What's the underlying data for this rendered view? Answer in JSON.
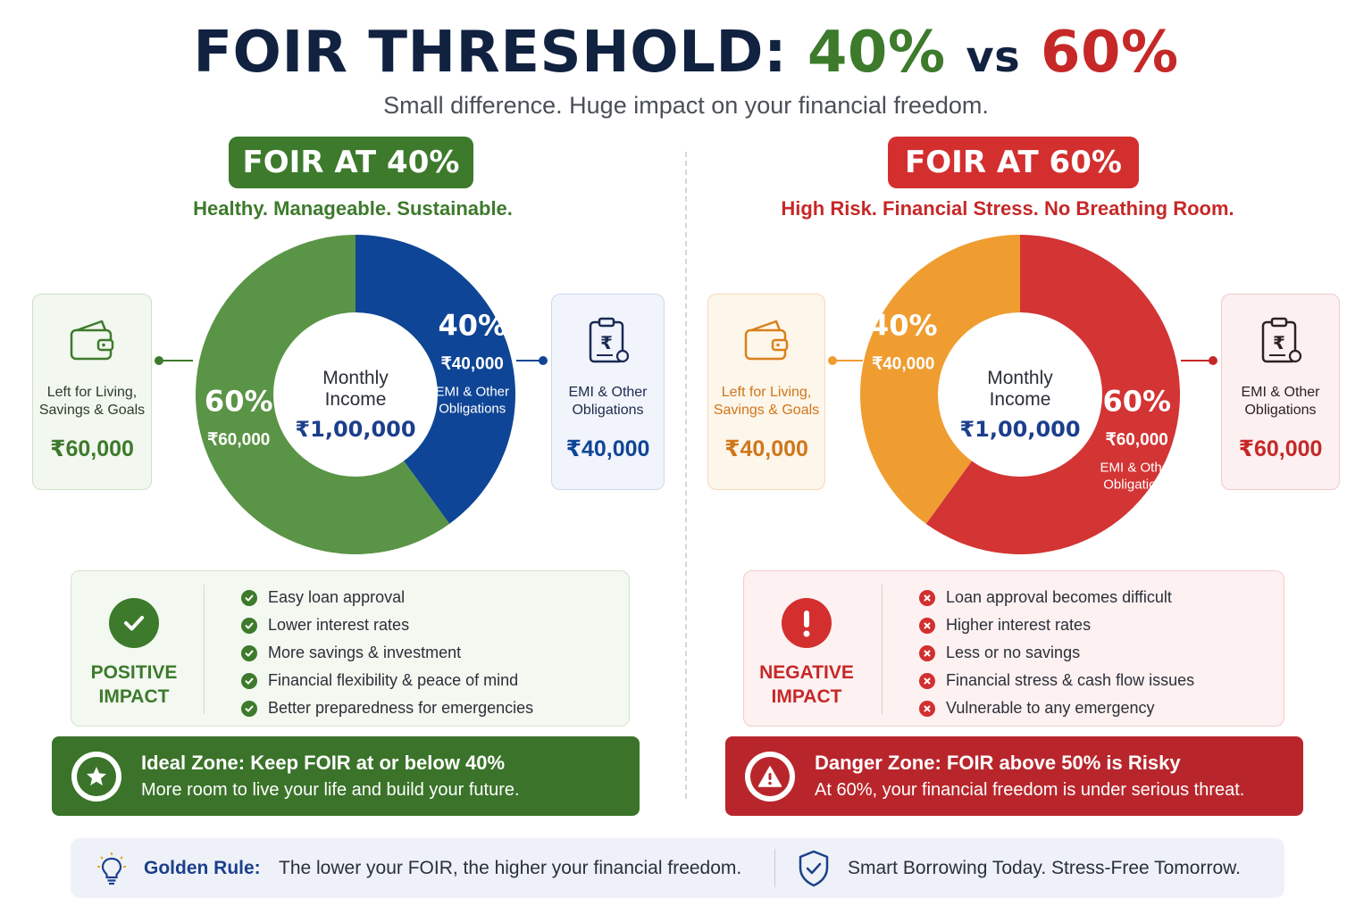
{
  "title": {
    "prefix": "FOIR THRESHOLD:",
    "low": "40%",
    "vs": "vs",
    "high": "60%"
  },
  "subtitle": "Small difference. Huge impact on your financial freedom.",
  "colors": {
    "green": "#3d7a2c",
    "green_light": "#639a4c",
    "blue": "#0f4596",
    "orange": "#ef9d31",
    "red": "#c62828",
    "red_chart": "#d33434",
    "navy": "#112240"
  },
  "left": {
    "pill": "FOIR AT 40%",
    "tagline": "Healthy. Manageable. Sustainable.",
    "left_box": {
      "icon": "wallet-icon",
      "label_line1": "Left for Living,",
      "label_line2": "Savings & Goals",
      "amount": "₹60,000"
    },
    "right_box": {
      "icon": "bill-icon",
      "label_line1": "EMI & Other",
      "label_line2": "Obligations",
      "amount": "₹40,000"
    },
    "impact": {
      "icon": "check-icon",
      "label_line1": "POSITIVE",
      "label_line2": "IMPACT",
      "items": [
        "Easy loan approval",
        "Lower interest rates",
        "More savings & investment",
        "Financial flexibility & peace of mind",
        "Better preparedness for emergencies"
      ]
    },
    "zone": {
      "icon": "star-icon",
      "heading": "Ideal Zone: Keep FOIR at or below 40%",
      "text": "More room to live your life and build your future."
    }
  },
  "right": {
    "pill": "FOIR AT 60%",
    "tagline": "High Risk. Financial Stress. No Breathing Room.",
    "left_box": {
      "icon": "wallet-icon",
      "label_line1": "Left for Living,",
      "label_line2": "Savings & Goals",
      "amount": "₹40,000"
    },
    "right_box": {
      "icon": "bill-icon",
      "label_line1": "EMI & Other",
      "label_line2": "Obligations",
      "amount": "₹60,000"
    },
    "impact": {
      "icon": "exclamation-icon",
      "label_line1": "NEGATIVE",
      "label_line2": "IMPACT",
      "items": [
        "Loan approval becomes difficult",
        "Higher interest rates",
        "Less or no savings",
        "Financial stress & cash flow issues",
        "Vulnerable to any emergency"
      ]
    },
    "zone": {
      "icon": "warning-icon",
      "heading": "Danger Zone: FOIR above 50% is Risky",
      "text": "At 60%, your financial freedom is under serious threat."
    }
  },
  "footer": {
    "bulb_icon": "lightbulb-icon",
    "rule_label": "Golden Rule:",
    "rule_text": "The lower your FOIR, the higher your financial freedom.",
    "shield_icon": "shield-icon",
    "slogan": "Smart Borrowing Today. Stress-Free Tomorrow."
  },
  "chart_data": [
    {
      "type": "pie",
      "title": "FOIR AT 40%",
      "center_label_line1": "Monthly",
      "center_label_line2": "Income",
      "center_value": "₹1,00,000",
      "slices": [
        {
          "name": "EMI & Other Obligations",
          "label_line1": "EMI & Other",
          "label_line2": "Obligations",
          "percent": 40,
          "percent_label": "40%",
          "amount": "₹40,000",
          "color": "#0f4596"
        },
        {
          "name": "Left for Living, Savings & Goals",
          "label_line1": "",
          "label_line2": "",
          "percent": 60,
          "percent_label": "60%",
          "amount": "₹60,000",
          "color": "#5a9446"
        }
      ]
    },
    {
      "type": "pie",
      "title": "FOIR AT 60%",
      "center_label_line1": "Monthly",
      "center_label_line2": "Income",
      "center_value": "₹1,00,000",
      "slices": [
        {
          "name": "EMI & Other Obligations",
          "label_line1": "EMI & Other",
          "label_line2": "Obligations",
          "percent": 60,
          "percent_label": "60%",
          "amount": "₹60,000",
          "color": "#d33434"
        },
        {
          "name": "Left for Living, Savings & Goals",
          "label_line1": "",
          "label_line2": "",
          "percent": 40,
          "percent_label": "40%",
          "amount": "₹40,000",
          "color": "#ef9d31"
        }
      ]
    }
  ]
}
